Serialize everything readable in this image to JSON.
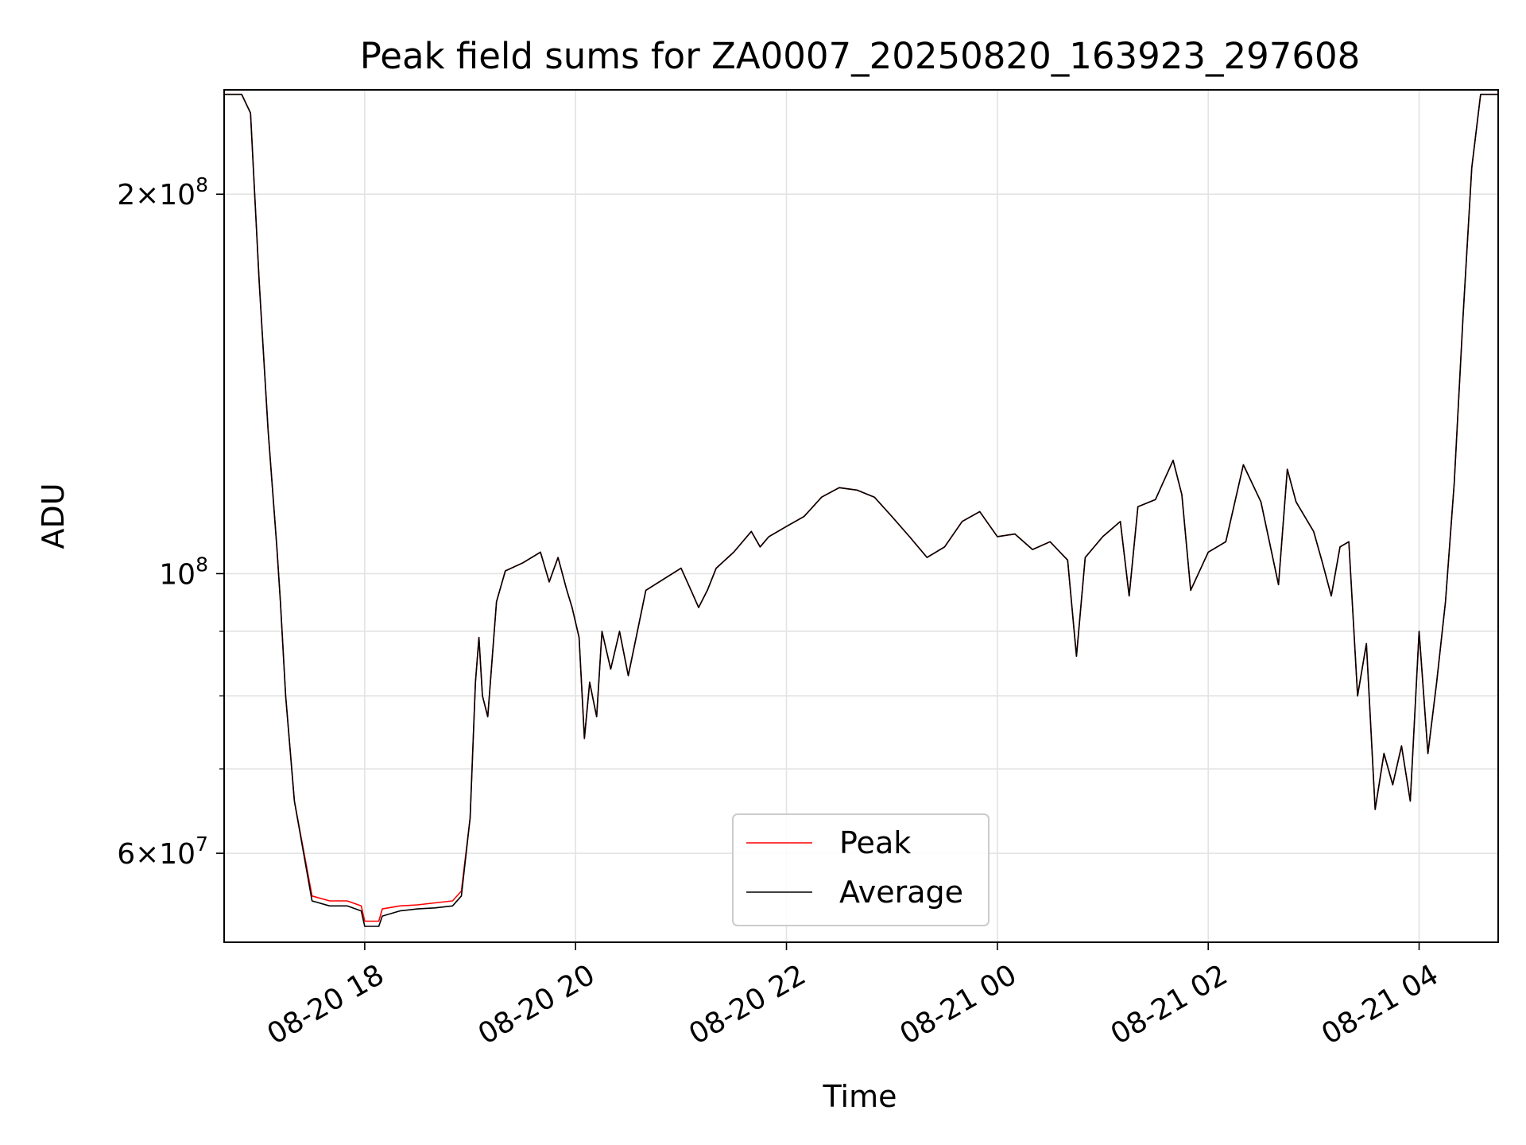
{
  "chart_data": {
    "type": "line",
    "title": "Peak field sums for ZA0007_20250820_163923_297608",
    "xlabel": "Time",
    "ylabel": "ADU",
    "yscale": "log",
    "ylim": [
      51000000,
      242000000
    ],
    "xlim": [
      "2025-08-20 16:40",
      "2025-08-21 04:45"
    ],
    "grid": true,
    "legend_position": "bottom-center",
    "x_ticks": [
      {
        "value": "2025-08-20 18:00",
        "label": "08-20 18"
      },
      {
        "value": "2025-08-20 20:00",
        "label": "08-20 20"
      },
      {
        "value": "2025-08-20 22:00",
        "label": "08-20 22"
      },
      {
        "value": "2025-08-21 00:00",
        "label": "08-21 00"
      },
      {
        "value": "2025-08-21 02:00",
        "label": "08-21 02"
      },
      {
        "value": "2025-08-21 04:00",
        "label": "08-21 04"
      }
    ],
    "y_major_ticks": [
      {
        "value": 200000000,
        "base": "2",
        "exp": "8"
      },
      {
        "value": 100000000,
        "base": "",
        "exp": "8"
      },
      {
        "value": 60000000,
        "base": "6",
        "exp": "7"
      }
    ],
    "y_minor_ticks": [
      70000000,
      80000000,
      90000000
    ],
    "colors": {
      "peak": "#ff0000",
      "average": "#000000"
    },
    "series": [
      {
        "name": "Peak",
        "x": [
          "2025-08-20 16:40",
          "2025-08-20 16:50",
          "2025-08-20 16:55",
          "2025-08-20 17:00",
          "2025-08-20 17:05",
          "2025-08-20 17:10",
          "2025-08-20 17:12",
          "2025-08-20 17:15",
          "2025-08-20 17:20",
          "2025-08-20 17:30",
          "2025-08-20 17:40",
          "2025-08-20 17:50",
          "2025-08-20 17:58",
          "2025-08-20 18:00",
          "2025-08-20 18:08",
          "2025-08-20 18:10",
          "2025-08-20 18:20",
          "2025-08-20 18:30",
          "2025-08-20 18:40",
          "2025-08-20 18:50",
          "2025-08-20 18:55",
          "2025-08-20 19:00",
          "2025-08-20 19:03",
          "2025-08-20 19:05",
          "2025-08-20 19:07",
          "2025-08-20 19:10",
          "2025-08-20 19:15",
          "2025-08-20 19:20",
          "2025-08-20 19:30",
          "2025-08-20 19:40",
          "2025-08-20 19:45",
          "2025-08-20 19:50",
          "2025-08-20 19:55",
          "2025-08-20 19:58",
          "2025-08-20 20:02",
          "2025-08-20 20:05",
          "2025-08-20 20:08",
          "2025-08-20 20:12",
          "2025-08-20 20:15",
          "2025-08-20 20:20",
          "2025-08-20 20:25",
          "2025-08-20 20:30",
          "2025-08-20 20:40",
          "2025-08-20 20:50",
          "2025-08-20 21:00",
          "2025-08-20 21:05",
          "2025-08-20 21:10",
          "2025-08-20 21:15",
          "2025-08-20 21:20",
          "2025-08-20 21:30",
          "2025-08-20 21:40",
          "2025-08-20 21:45",
          "2025-08-20 21:50",
          "2025-08-20 22:00",
          "2025-08-20 22:10",
          "2025-08-20 22:20",
          "2025-08-20 22:30",
          "2025-08-20 22:40",
          "2025-08-20 22:50",
          "2025-08-20 23:00",
          "2025-08-20 23:10",
          "2025-08-20 23:20",
          "2025-08-20 23:30",
          "2025-08-20 23:40",
          "2025-08-20 23:50",
          "2025-08-21 00:00",
          "2025-08-21 00:10",
          "2025-08-21 00:20",
          "2025-08-21 00:30",
          "2025-08-21 00:40",
          "2025-08-21 00:45",
          "2025-08-21 00:50",
          "2025-08-21 01:00",
          "2025-08-21 01:10",
          "2025-08-21 01:15",
          "2025-08-21 01:20",
          "2025-08-21 01:30",
          "2025-08-21 01:40",
          "2025-08-21 01:45",
          "2025-08-21 01:50",
          "2025-08-21 02:00",
          "2025-08-21 02:10",
          "2025-08-21 02:20",
          "2025-08-21 02:30",
          "2025-08-21 02:40",
          "2025-08-21 02:45",
          "2025-08-21 02:50",
          "2025-08-21 03:00",
          "2025-08-21 03:05",
          "2025-08-21 03:10",
          "2025-08-21 03:15",
          "2025-08-21 03:20",
          "2025-08-21 03:25",
          "2025-08-21 03:30",
          "2025-08-21 03:35",
          "2025-08-21 03:40",
          "2025-08-21 03:45",
          "2025-08-21 03:50",
          "2025-08-21 03:55",
          "2025-08-21 04:00",
          "2025-08-21 04:05",
          "2025-08-21 04:10",
          "2025-08-21 04:15",
          "2025-08-21 04:20",
          "2025-08-21 04:25",
          "2025-08-21 04:30",
          "2025-08-21 04:35",
          "2025-08-21 04:40",
          "2025-08-21 04:45"
        ],
        "y": [
          240000000,
          240000000,
          232000000,
          170000000,
          130000000,
          105000000,
          95000000,
          80000000,
          66000000,
          55500000,
          55000000,
          55000000,
          54500000,
          53000000,
          53000000,
          54200000,
          54500000,
          54600000,
          54800000,
          55000000,
          56000000,
          64000000,
          82000000,
          89000000,
          80000000,
          77000000,
          95000000,
          100500000,
          102000000,
          104000000,
          98500000,
          103000000,
          97000000,
          94000000,
          89000000,
          74000000,
          82000000,
          77000000,
          90000000,
          84000000,
          90000000,
          83000000,
          97000000,
          99000000,
          101000000,
          97500000,
          94000000,
          97000000,
          101000000,
          104000000,
          108000000,
          105000000,
          107000000,
          109000000,
          111000000,
          115000000,
          117000000,
          116500000,
          115000000,
          111000000,
          107000000,
          103000000,
          105000000,
          110000000,
          112000000,
          107000000,
          107500000,
          104500000,
          106000000,
          102500000,
          86000000,
          103000000,
          107000000,
          110000000,
          96000000,
          113000000,
          114500000,
          123000000,
          115500000,
          97000000,
          104000000,
          106000000,
          122000000,
          114000000,
          98000000,
          121000000,
          114000000,
          108000000,
          102000000,
          96000000,
          105000000,
          106000000,
          80000000,
          88000000,
          65000000,
          72000000,
          68000000,
          73000000,
          66000000,
          90000000,
          72000000,
          82000000,
          95000000,
          118000000,
          160000000,
          210000000,
          240000000,
          240000000,
          240000000
        ]
      },
      {
        "name": "Average",
        "x": [
          "2025-08-20 16:40",
          "2025-08-20 16:50",
          "2025-08-20 16:55",
          "2025-08-20 17:00",
          "2025-08-20 17:05",
          "2025-08-20 17:10",
          "2025-08-20 17:12",
          "2025-08-20 17:15",
          "2025-08-20 17:20",
          "2025-08-20 17:30",
          "2025-08-20 17:40",
          "2025-08-20 17:50",
          "2025-08-20 17:58",
          "2025-08-20 18:00",
          "2025-08-20 18:08",
          "2025-08-20 18:10",
          "2025-08-20 18:20",
          "2025-08-20 18:30",
          "2025-08-20 18:40",
          "2025-08-20 18:50",
          "2025-08-20 18:55",
          "2025-08-20 19:00",
          "2025-08-20 19:03",
          "2025-08-20 19:05",
          "2025-08-20 19:07",
          "2025-08-20 19:10",
          "2025-08-20 19:15",
          "2025-08-20 19:20",
          "2025-08-20 19:30",
          "2025-08-20 19:40",
          "2025-08-20 19:45",
          "2025-08-20 19:50",
          "2025-08-20 19:55",
          "2025-08-20 19:58",
          "2025-08-20 20:02",
          "2025-08-20 20:05",
          "2025-08-20 20:08",
          "2025-08-20 20:12",
          "2025-08-20 20:15",
          "2025-08-20 20:20",
          "2025-08-20 20:25",
          "2025-08-20 20:30",
          "2025-08-20 20:40",
          "2025-08-20 20:50",
          "2025-08-20 21:00",
          "2025-08-20 21:05",
          "2025-08-20 21:10",
          "2025-08-20 21:15",
          "2025-08-20 21:20",
          "2025-08-20 21:30",
          "2025-08-20 21:40",
          "2025-08-20 21:45",
          "2025-08-20 21:50",
          "2025-08-20 22:00",
          "2025-08-20 22:10",
          "2025-08-20 22:20",
          "2025-08-20 22:30",
          "2025-08-20 22:40",
          "2025-08-20 22:50",
          "2025-08-20 23:00",
          "2025-08-20 23:10",
          "2025-08-20 23:20",
          "2025-08-20 23:30",
          "2025-08-20 23:40",
          "2025-08-20 23:50",
          "2025-08-21 00:00",
          "2025-08-21 00:10",
          "2025-08-21 00:20",
          "2025-08-21 00:30",
          "2025-08-21 00:40",
          "2025-08-21 00:45",
          "2025-08-21 00:50",
          "2025-08-21 01:00",
          "2025-08-21 01:10",
          "2025-08-21 01:15",
          "2025-08-21 01:20",
          "2025-08-21 01:30",
          "2025-08-21 01:40",
          "2025-08-21 01:45",
          "2025-08-21 01:50",
          "2025-08-21 02:00",
          "2025-08-21 02:10",
          "2025-08-21 02:20",
          "2025-08-21 02:30",
          "2025-08-21 02:40",
          "2025-08-21 02:45",
          "2025-08-21 02:50",
          "2025-08-21 03:00",
          "2025-08-21 03:05",
          "2025-08-21 03:10",
          "2025-08-21 03:15",
          "2025-08-21 03:20",
          "2025-08-21 03:25",
          "2025-08-21 03:30",
          "2025-08-21 03:35",
          "2025-08-21 03:40",
          "2025-08-21 03:45",
          "2025-08-21 03:50",
          "2025-08-21 03:55",
          "2025-08-21 04:00",
          "2025-08-21 04:05",
          "2025-08-21 04:10",
          "2025-08-21 04:15",
          "2025-08-21 04:20",
          "2025-08-21 04:25",
          "2025-08-21 04:30",
          "2025-08-21 04:35",
          "2025-08-21 04:40",
          "2025-08-21 04:45"
        ],
        "y": [
          240000000,
          240000000,
          232000000,
          170000000,
          130000000,
          105000000,
          95000000,
          80000000,
          66000000,
          55000000,
          54500000,
          54500000,
          54000000,
          52500000,
          52500000,
          53500000,
          54000000,
          54200000,
          54300000,
          54500000,
          55500000,
          64000000,
          82000000,
          89000000,
          80000000,
          77000000,
          95000000,
          100500000,
          102000000,
          104000000,
          98500000,
          103000000,
          97000000,
          94000000,
          89000000,
          74000000,
          82000000,
          77000000,
          90000000,
          84000000,
          90000000,
          83000000,
          97000000,
          99000000,
          101000000,
          97500000,
          94000000,
          97000000,
          101000000,
          104000000,
          108000000,
          105000000,
          107000000,
          109000000,
          111000000,
          115000000,
          117000000,
          116500000,
          115000000,
          111000000,
          107000000,
          103000000,
          105000000,
          110000000,
          112000000,
          107000000,
          107500000,
          104500000,
          106000000,
          102500000,
          86000000,
          103000000,
          107000000,
          110000000,
          96000000,
          113000000,
          114500000,
          123000000,
          115500000,
          97000000,
          104000000,
          106000000,
          122000000,
          114000000,
          98000000,
          121000000,
          114000000,
          108000000,
          102000000,
          96000000,
          105000000,
          106000000,
          80000000,
          88000000,
          65000000,
          72000000,
          68000000,
          73000000,
          66000000,
          90000000,
          72000000,
          82000000,
          95000000,
          118000000,
          160000000,
          210000000,
          240000000,
          240000000,
          240000000
        ]
      }
    ]
  }
}
